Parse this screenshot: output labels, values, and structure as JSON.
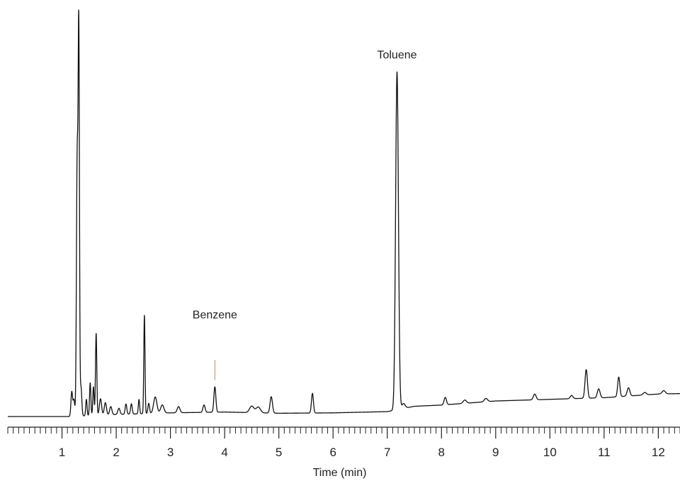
{
  "chart_data": {
    "type": "line",
    "title": "",
    "xlabel": "Time (min)",
    "ylabel": "",
    "xlim": [
      0,
      12.4
    ],
    "ylim": [
      0,
      100
    ],
    "x_ticks": [
      1,
      2,
      3,
      4,
      5,
      6,
      7,
      8,
      9,
      10,
      11,
      12
    ],
    "minor_tick_step": 0.1,
    "grid": false,
    "legend": "none",
    "line_color": "#111111",
    "marker_color": "#c8834a",
    "baseline": [
      [
        0,
        0.0
      ],
      [
        1.1,
        0.0
      ],
      [
        2.0,
        0.5
      ],
      [
        3.0,
        0.9
      ],
      [
        4.0,
        1.1
      ],
      [
        5.0,
        0.8
      ],
      [
        6.0,
        0.9
      ],
      [
        7.0,
        1.2
      ],
      [
        7.5,
        2.5
      ],
      [
        8.0,
        2.8
      ],
      [
        9.0,
        3.8
      ],
      [
        10.0,
        4.2
      ],
      [
        11.0,
        4.6
      ],
      [
        12.0,
        5.5
      ],
      [
        12.4,
        5.6
      ]
    ],
    "peaks": [
      {
        "x": 1.18,
        "height": 6.0,
        "width": 0.015
      },
      {
        "x": 1.22,
        "height": 4.0,
        "width": 0.015
      },
      {
        "x": 1.28,
        "height": 62.0,
        "width": 0.014
      },
      {
        "x": 1.31,
        "height": 92.0,
        "width": 0.012
      },
      {
        "x": 1.35,
        "height": 7.0,
        "width": 0.015
      },
      {
        "x": 1.45,
        "height": 4.0,
        "width": 0.012
      },
      {
        "x": 1.52,
        "height": 8.0,
        "width": 0.012
      },
      {
        "x": 1.58,
        "height": 7.0,
        "width": 0.012
      },
      {
        "x": 1.63,
        "height": 20.0,
        "width": 0.012
      },
      {
        "x": 1.71,
        "height": 4.0,
        "width": 0.02
      },
      {
        "x": 1.8,
        "height": 3.0,
        "width": 0.02
      },
      {
        "x": 1.9,
        "height": 2.0,
        "width": 0.02
      },
      {
        "x": 2.05,
        "height": 1.5,
        "width": 0.02
      },
      {
        "x": 2.18,
        "height": 2.5,
        "width": 0.015
      },
      {
        "x": 2.28,
        "height": 2.5,
        "width": 0.015
      },
      {
        "x": 2.42,
        "height": 3.5,
        "width": 0.012
      },
      {
        "x": 2.52,
        "height": 24.0,
        "width": 0.011
      },
      {
        "x": 2.6,
        "height": 2.5,
        "width": 0.015
      },
      {
        "x": 2.72,
        "height": 4.0,
        "width": 0.03
      },
      {
        "x": 2.85,
        "height": 2.0,
        "width": 0.03
      },
      {
        "x": 3.15,
        "height": 1.5,
        "width": 0.025
      },
      {
        "x": 3.62,
        "height": 1.8,
        "width": 0.02
      },
      {
        "x": 3.82,
        "height": 6.2,
        "width": 0.018
      },
      {
        "x": 4.5,
        "height": 1.6,
        "width": 0.04
      },
      {
        "x": 4.62,
        "height": 1.4,
        "width": 0.04
      },
      {
        "x": 4.86,
        "height": 4.0,
        "width": 0.022
      },
      {
        "x": 5.62,
        "height": 4.8,
        "width": 0.018
      },
      {
        "x": 7.18,
        "height": 82.5,
        "width": 0.026
      },
      {
        "x": 7.3,
        "height": 1.2,
        "width": 0.03
      },
      {
        "x": 8.07,
        "height": 1.8,
        "width": 0.022
      },
      {
        "x": 8.43,
        "height": 0.8,
        "width": 0.03
      },
      {
        "x": 8.82,
        "height": 0.8,
        "width": 0.03
      },
      {
        "x": 9.72,
        "height": 1.4,
        "width": 0.025
      },
      {
        "x": 10.4,
        "height": 0.8,
        "width": 0.025
      },
      {
        "x": 10.67,
        "height": 7.0,
        "width": 0.022
      },
      {
        "x": 10.9,
        "height": 2.2,
        "width": 0.025
      },
      {
        "x": 11.27,
        "height": 4.8,
        "width": 0.02
      },
      {
        "x": 11.45,
        "height": 2.0,
        "width": 0.025
      },
      {
        "x": 11.75,
        "height": 0.6,
        "width": 0.03
      },
      {
        "x": 12.1,
        "height": 0.8,
        "width": 0.03
      }
    ],
    "annotations": [
      {
        "label": "Benzene",
        "x": 3.82,
        "text_level": 24.0,
        "marker_top": 13.8,
        "marker_bottom": 8.9
      },
      {
        "label": "Toluene",
        "x": 7.18,
        "text_level": 87.5
      }
    ]
  }
}
